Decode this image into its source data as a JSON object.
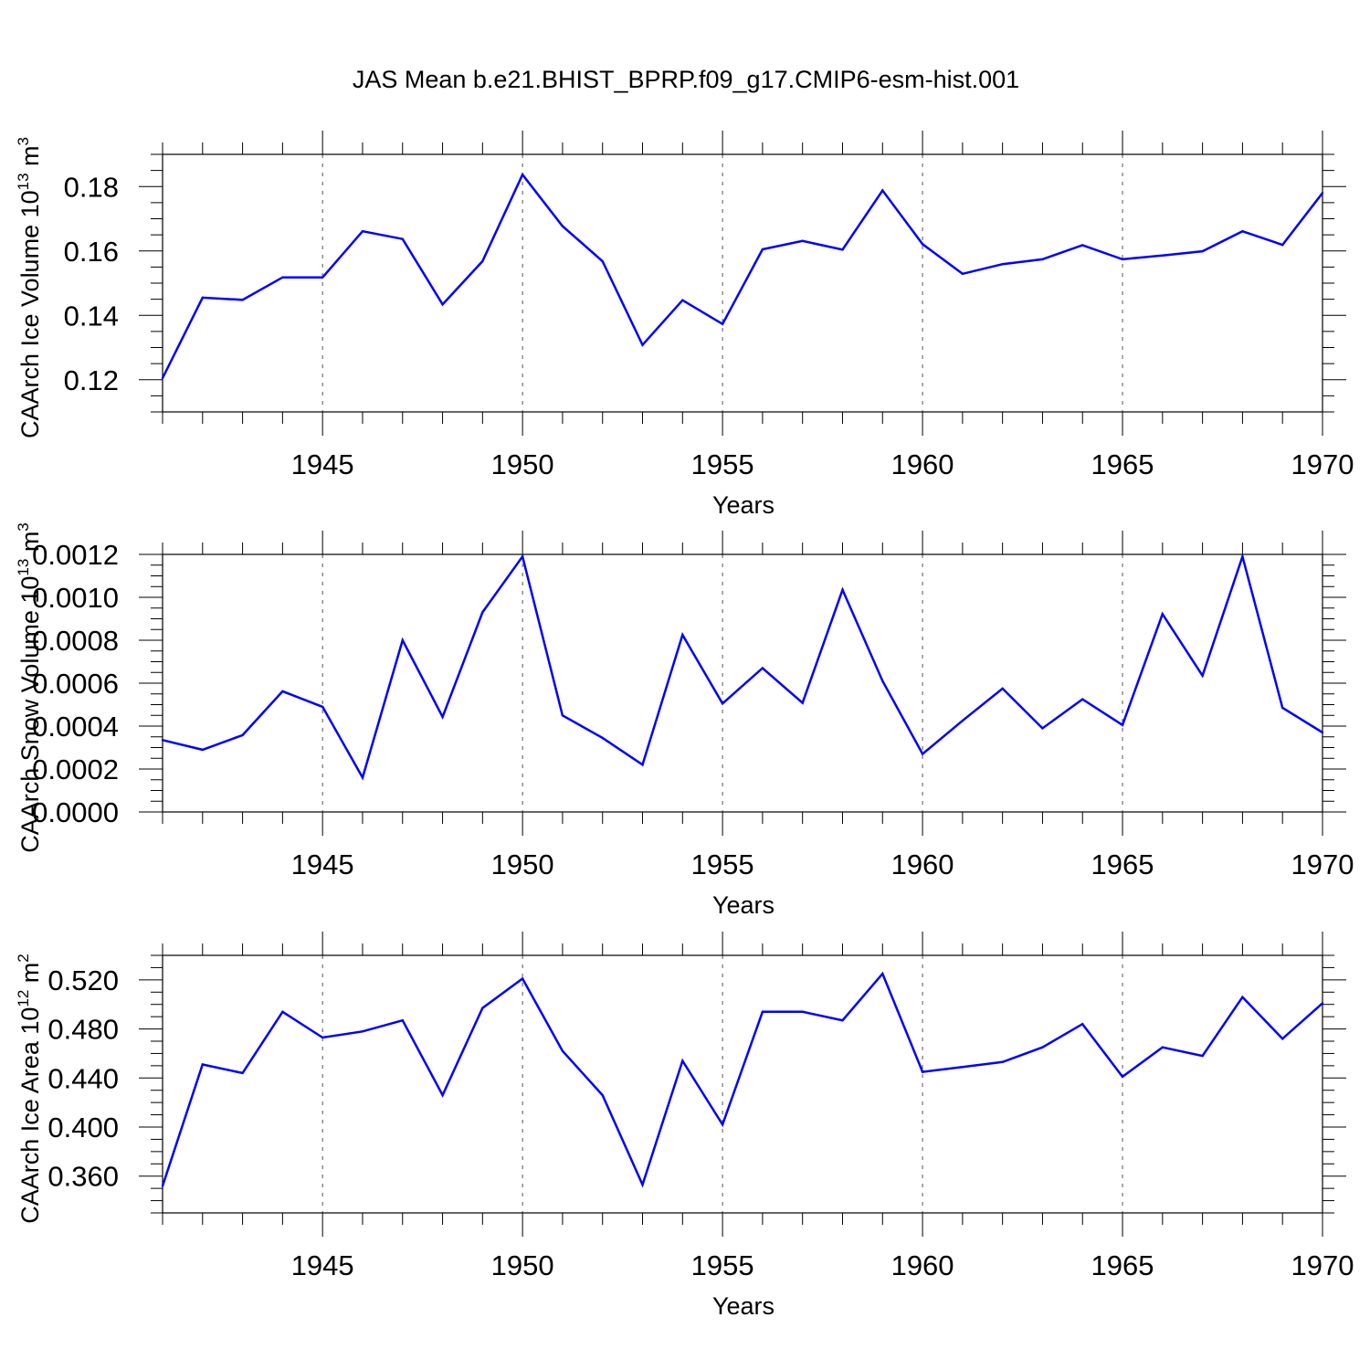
{
  "title": "JAS Mean b.e21.BHIST_BPRP.f09_g17.CMIP6-esm-hist.001",
  "colors": {
    "series": "#0000ff",
    "axis": "#000000",
    "grid": "#555555"
  },
  "chart_data": [
    {
      "type": "line",
      "ylabel": {
        "base": "CAArch Ice Volume 10",
        "sup": "13",
        "mid": " m",
        "unit_sup": "3"
      },
      "xlabel": "Years",
      "xlim": [
        1941,
        1970
      ],
      "ylim": [
        0.11,
        0.19
      ],
      "x_ticks": [
        1945,
        1950,
        1955,
        1960,
        1965,
        1970
      ],
      "y_ticks": [
        "0.12",
        "0.14",
        "0.16",
        "0.18"
      ],
      "grid": "vertical dashed at major x ticks",
      "series": [
        {
          "x": [
            1941,
            1942,
            1943,
            1944,
            1945,
            1946,
            1947,
            1948,
            1949,
            1950,
            1951,
            1952,
            1953,
            1954,
            1955,
            1956,
            1957,
            1958,
            1959,
            1960,
            1961,
            1962,
            1963,
            1964,
            1965,
            1966,
            1967,
            1968,
            1969,
            1970
          ],
          "values": [
            0.1205,
            0.1455,
            0.1448,
            0.1518,
            0.1518,
            0.1661,
            0.1637,
            0.1434,
            0.1568,
            0.1837,
            0.1677,
            0.1568,
            0.1308,
            0.1447,
            0.1373,
            0.1605,
            0.1631,
            0.1604,
            0.1788,
            0.1621,
            0.1529,
            0.1559,
            0.1574,
            0.1618,
            0.1574,
            0.1586,
            0.1599,
            0.1661,
            0.1619,
            0.178
          ]
        }
      ]
    },
    {
      "type": "line",
      "ylabel": {
        "base": "CAArch Snow Volume 10",
        "sup": "13",
        "mid": " m",
        "unit_sup": "3"
      },
      "xlabel": "Years",
      "xlim": [
        1941,
        1970
      ],
      "ylim": [
        0.0,
        0.0012
      ],
      "x_ticks": [
        1945,
        1950,
        1955,
        1960,
        1965,
        1970
      ],
      "y_ticks": [
        "0.0000",
        "0.0002",
        "0.0004",
        "0.0006",
        "0.0008",
        "0.0010",
        "0.0012"
      ],
      "grid": "vertical dashed at major x ticks",
      "series": [
        {
          "x": [
            1941,
            1942,
            1943,
            1944,
            1945,
            1946,
            1947,
            1948,
            1949,
            1950,
            1951,
            1952,
            1953,
            1954,
            1955,
            1956,
            1957,
            1958,
            1959,
            1960,
            1961,
            1962,
            1963,
            1964,
            1965,
            1966,
            1967,
            1968,
            1969,
            1970
          ],
          "values": [
            0.000335,
            0.00029,
            0.000358,
            0.000562,
            0.00049,
            0.00016,
            0.0008,
            0.000443,
            0.00093,
            0.00119,
            0.00045,
            0.000345,
            0.00022,
            0.000825,
            0.000505,
            0.00067,
            0.000508,
            0.001035,
            0.00061,
            0.00027,
            0.000425,
            0.000575,
            0.00039,
            0.000525,
            0.000405,
            0.000922,
            0.000635,
            0.00119,
            0.000485,
            0.00037
          ]
        }
      ]
    },
    {
      "type": "line",
      "ylabel": {
        "base": "CAArch Ice Area 10",
        "sup": "12",
        "mid": " m",
        "unit_sup": "2"
      },
      "xlabel": "Years",
      "xlim": [
        1941,
        1970
      ],
      "ylim": [
        0.33,
        0.54
      ],
      "x_ticks": [
        1945,
        1950,
        1955,
        1960,
        1965,
        1970
      ],
      "y_ticks": [
        "0.360",
        "0.400",
        "0.440",
        "0.480",
        "0.520"
      ],
      "grid": "vertical dashed at major x ticks",
      "series": [
        {
          "x": [
            1941,
            1942,
            1943,
            1944,
            1945,
            1946,
            1947,
            1948,
            1949,
            1950,
            1951,
            1952,
            1953,
            1954,
            1955,
            1956,
            1957,
            1958,
            1959,
            1960,
            1961,
            1962,
            1963,
            1964,
            1965,
            1966,
            1967,
            1968,
            1969,
            1970
          ],
          "values": [
            0.352,
            0.451,
            0.444,
            0.494,
            0.473,
            0.478,
            0.487,
            0.426,
            0.497,
            0.521,
            0.462,
            0.426,
            0.353,
            0.454,
            0.402,
            0.494,
            0.494,
            0.487,
            0.525,
            0.445,
            0.449,
            0.453,
            0.465,
            0.484,
            0.441,
            0.465,
            0.458,
            0.506,
            0.472,
            0.501
          ]
        }
      ]
    }
  ]
}
